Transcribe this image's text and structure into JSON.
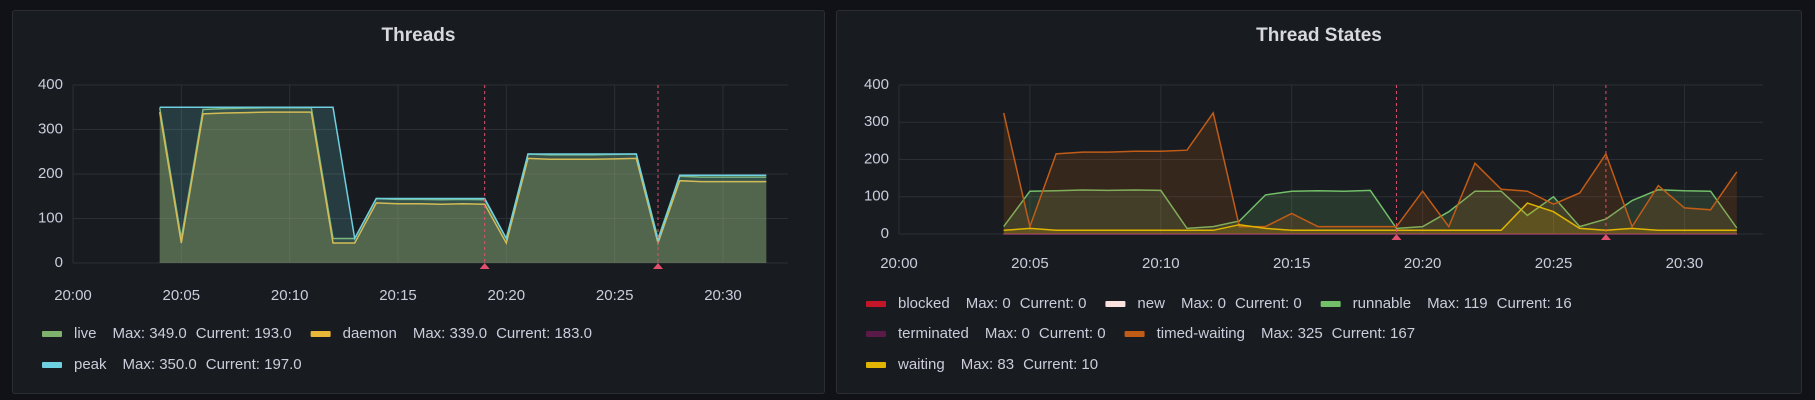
{
  "chart_data": [
    {
      "type": "line",
      "title": "Threads",
      "x": [
        "20:04",
        "20:05",
        "20:06",
        "20:07",
        "20:08",
        "20:09",
        "20:10",
        "20:11",
        "20:12",
        "20:13",
        "20:14",
        "20:15",
        "20:16",
        "20:17",
        "20:18",
        "20:19",
        "20:20",
        "20:21",
        "20:22",
        "20:23",
        "20:24",
        "20:25",
        "20:26",
        "20:27",
        "20:28",
        "20:29",
        "20:30",
        "20:31",
        "20:32"
      ],
      "series": [
        {
          "name": "live",
          "color": "#7eb26d",
          "legend_stats": [
            "Max: 349.0",
            "Current: 193.0"
          ],
          "values": [
            349,
            55,
            345,
            347,
            348,
            349,
            349,
            349,
            55,
            55,
            145,
            143,
            143,
            142,
            143,
            142,
            55,
            245,
            243,
            243,
            243,
            244,
            245,
            55,
            195,
            193,
            193,
            193,
            193
          ]
        },
        {
          "name": "daemon",
          "color": "#eab839",
          "legend_stats": [
            "Max: 339.0",
            "Current: 183.0"
          ],
          "values": [
            339,
            45,
            335,
            337,
            338,
            339,
            339,
            339,
            45,
            45,
            135,
            133,
            133,
            132,
            133,
            132,
            45,
            235,
            233,
            233,
            233,
            234,
            235,
            45,
            185,
            183,
            183,
            183,
            183
          ]
        },
        {
          "name": "peak",
          "color": "#6ed0e0",
          "legend_stats": [
            "Max: 350.0",
            "Current: 197.0"
          ],
          "values": [
            350,
            350,
            350,
            350,
            350,
            350,
            350,
            350,
            350,
            55,
            145,
            145,
            145,
            145,
            145,
            145,
            55,
            245,
            245,
            245,
            245,
            245,
            245,
            50,
            197,
            197,
            197,
            197,
            197
          ]
        }
      ],
      "xlim": [
        "20:00",
        "20:33"
      ],
      "xticks": [
        "20:00",
        "20:05",
        "20:10",
        "20:15",
        "20:20",
        "20:25",
        "20:30"
      ],
      "ylim": [
        0,
        400
      ],
      "yticks": [
        0,
        100,
        200,
        300,
        400
      ],
      "grid": true,
      "fill": true,
      "annotations": [
        "20:19",
        "20:27"
      ]
    },
    {
      "type": "line",
      "title": "Thread States",
      "x": [
        "20:04",
        "20:05",
        "20:06",
        "20:07",
        "20:08",
        "20:09",
        "20:10",
        "20:11",
        "20:12",
        "20:13",
        "20:14",
        "20:15",
        "20:16",
        "20:17",
        "20:18",
        "20:19",
        "20:20",
        "20:21",
        "20:22",
        "20:23",
        "20:24",
        "20:25",
        "20:26",
        "20:27",
        "20:28",
        "20:29",
        "20:30",
        "20:31",
        "20:32"
      ],
      "series": [
        {
          "name": "blocked",
          "color": "#c4162a",
          "legend_stats": [
            "Max: 0",
            "Current: 0"
          ],
          "values": [
            0,
            0,
            0,
            0,
            0,
            0,
            0,
            0,
            0,
            0,
            0,
            0,
            0,
            0,
            0,
            0,
            0,
            0,
            0,
            0,
            0,
            0,
            0,
            0,
            0,
            0,
            0,
            0,
            0
          ]
        },
        {
          "name": "new",
          "color": "#fce2de",
          "legend_stats": [
            "Max: 0",
            "Current: 0"
          ],
          "values": [
            0,
            0,
            0,
            0,
            0,
            0,
            0,
            0,
            0,
            0,
            0,
            0,
            0,
            0,
            0,
            0,
            0,
            0,
            0,
            0,
            0,
            0,
            0,
            0,
            0,
            0,
            0,
            0,
            0
          ]
        },
        {
          "name": "runnable",
          "color": "#73bf69",
          "legend_stats": [
            "Max: 119",
            "Current: 16"
          ],
          "values": [
            20,
            115,
            116,
            118,
            117,
            118,
            117,
            15,
            20,
            35,
            105,
            115,
            116,
            115,
            117,
            15,
            20,
            60,
            115,
            115,
            50,
            100,
            20,
            40,
            90,
            119,
            116,
            115,
            16
          ]
        },
        {
          "name": "terminated",
          "color": "#5a1a48",
          "legend_stats": [
            "Max: 0",
            "Current: 0"
          ],
          "values": [
            0,
            0,
            0,
            0,
            0,
            0,
            0,
            0,
            0,
            0,
            0,
            0,
            0,
            0,
            0,
            0,
            0,
            0,
            0,
            0,
            0,
            0,
            0,
            0,
            0,
            0,
            0,
            0,
            0
          ]
        },
        {
          "name": "timed-waiting",
          "color": "#c15c17",
          "legend_stats": [
            "Max: 325",
            "Current: 167"
          ],
          "values": [
            325,
            20,
            215,
            220,
            220,
            222,
            222,
            225,
            325,
            20,
            20,
            55,
            20,
            20,
            20,
            20,
            115,
            20,
            190,
            120,
            115,
            80,
            110,
            215,
            20,
            130,
            70,
            65,
            167
          ]
        },
        {
          "name": "waiting",
          "color": "#e0b400",
          "legend_stats": [
            "Max: 83",
            "Current: 10"
          ],
          "values": [
            10,
            15,
            10,
            10,
            10,
            10,
            10,
            10,
            10,
            25,
            15,
            10,
            10,
            10,
            10,
            10,
            10,
            10,
            10,
            10,
            83,
            60,
            15,
            10,
            15,
            10,
            10,
            10,
            10
          ]
        }
      ],
      "xlim": [
        "20:00",
        "20:33"
      ],
      "xticks": [
        "20:00",
        "20:05",
        "20:10",
        "20:15",
        "20:20",
        "20:25",
        "20:30"
      ],
      "ylim": [
        0,
        400
      ],
      "yticks": [
        0,
        100,
        200,
        300,
        400
      ],
      "grid": true,
      "fill": true,
      "annotations": [
        "20:19",
        "20:27"
      ]
    }
  ]
}
